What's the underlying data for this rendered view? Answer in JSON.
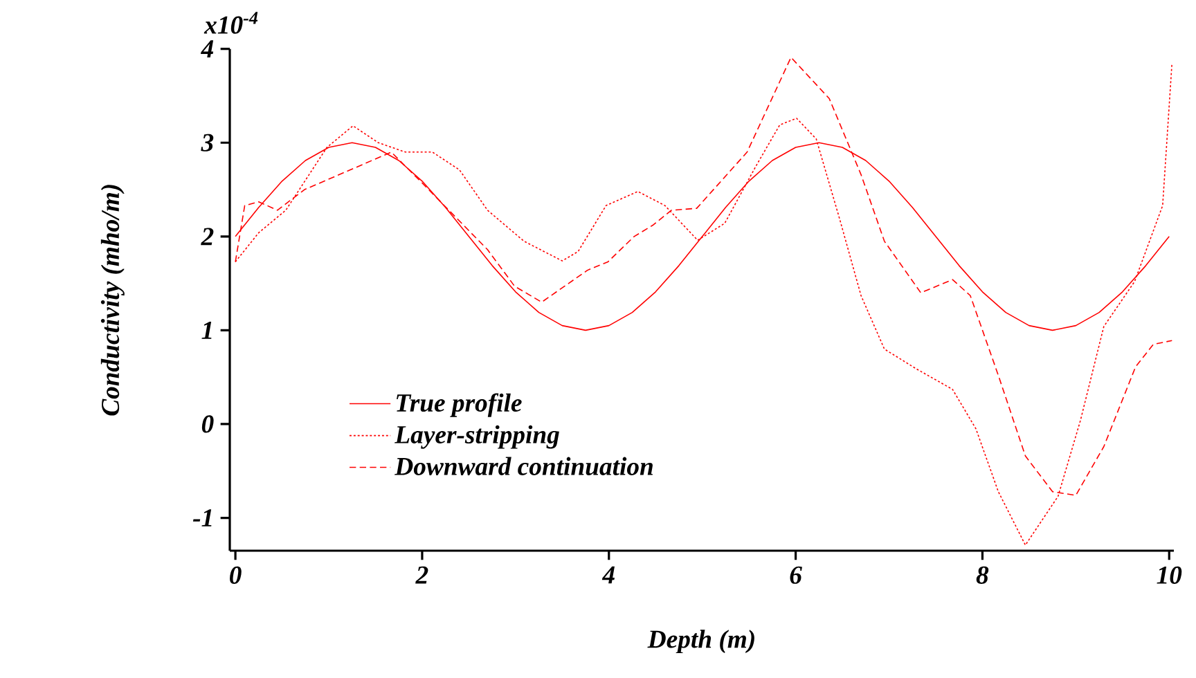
{
  "chart_data": {
    "type": "line",
    "xlabel": "Depth (m)",
    "ylabel": "Conductivity (mho/m)",
    "xlim": [
      -0.06,
      10.05
    ],
    "ylim": [
      -1.35,
      4
    ],
    "xticks": [
      0,
      2,
      4,
      6,
      8,
      10
    ],
    "yticks": [
      -1,
      0,
      1,
      2,
      3,
      4
    ],
    "annotations": [
      "x10$^{-4}$"
    ],
    "legend": "bottom left",
    "grid": false,
    "series": [
      {
        "name": "True profile",
        "color": "#ff0000",
        "line_style": "solid",
        "x": [
          0,
          0.25,
          0.5,
          0.75,
          1,
          1.25,
          1.5,
          1.75,
          2,
          2.25,
          2.5,
          2.75,
          3,
          3.25,
          3.5,
          3.75,
          4,
          4.25,
          4.5,
          4.75,
          5,
          5.25,
          5.5,
          5.75,
          6,
          6.25,
          6.5,
          6.75,
          7,
          7.25,
          7.5,
          7.75,
          8,
          8.25,
          8.5,
          8.75,
          9,
          9.25,
          9.5,
          9.75,
          10
        ],
        "values": [
          2,
          2.31,
          2.59,
          2.81,
          2.95,
          3,
          2.95,
          2.81,
          2.59,
          2.31,
          2,
          1.69,
          1.41,
          1.19,
          1.05,
          1,
          1.05,
          1.19,
          1.41,
          1.69,
          2,
          2.31,
          2.59,
          2.81,
          2.95,
          3,
          2.95,
          2.81,
          2.59,
          2.31,
          2,
          1.69,
          1.41,
          1.19,
          1.05,
          1,
          1.05,
          1.19,
          1.41,
          1.69,
          2
        ]
      },
      {
        "name": "Layer-stripping",
        "color": "#ff0000",
        "line_style": "dotted",
        "x": [
          0,
          0.25,
          0.54,
          0.98,
          1.26,
          1.53,
          1.82,
          2.11,
          2.4,
          2.7,
          3.09,
          3.5,
          3.67,
          3.97,
          4.31,
          4.6,
          4.95,
          5.24,
          5.58,
          5.83,
          6.01,
          6.22,
          6.47,
          6.7,
          6.95,
          7.29,
          7.68,
          7.93,
          8.17,
          8.46,
          8.81,
          9.05,
          9.3,
          9.63,
          9.93,
          10.03
        ],
        "values": [
          1.73,
          2.04,
          2.28,
          2.95,
          3.18,
          3.0,
          2.9,
          2.9,
          2.71,
          2.28,
          1.95,
          1.74,
          1.84,
          2.33,
          2.48,
          2.33,
          1.96,
          2.14,
          2.76,
          3.19,
          3.26,
          3.04,
          2.19,
          1.37,
          0.8,
          0.59,
          0.37,
          -0.05,
          -0.72,
          -1.29,
          -0.77,
          0.04,
          1.04,
          1.52,
          2.33,
          3.85
        ]
      },
      {
        "name": "Downward continuation",
        "color": "#ff0000",
        "line_style": "dashed",
        "x": [
          0,
          0.1,
          0.25,
          0.45,
          0.74,
          1.23,
          1.67,
          2.0,
          2.7,
          2.99,
          3.28,
          3.77,
          3.99,
          4.27,
          4.47,
          4.67,
          4.94,
          5.48,
          5.95,
          6.36,
          6.7,
          6.95,
          7.34,
          7.68,
          7.87,
          8.17,
          8.46,
          8.75,
          9.0,
          9.3,
          9.64,
          9.83,
          10.03
        ],
        "values": [
          1.73,
          2.33,
          2.37,
          2.28,
          2.5,
          2.71,
          2.9,
          2.57,
          1.86,
          1.47,
          1.3,
          1.64,
          1.73,
          2.0,
          2.12,
          2.28,
          2.3,
          2.9,
          3.91,
          3.47,
          2.66,
          1.95,
          1.4,
          1.54,
          1.37,
          0.52,
          -0.34,
          -0.72,
          -0.76,
          -0.24,
          0.61,
          0.85,
          0.89
        ]
      }
    ]
  }
}
